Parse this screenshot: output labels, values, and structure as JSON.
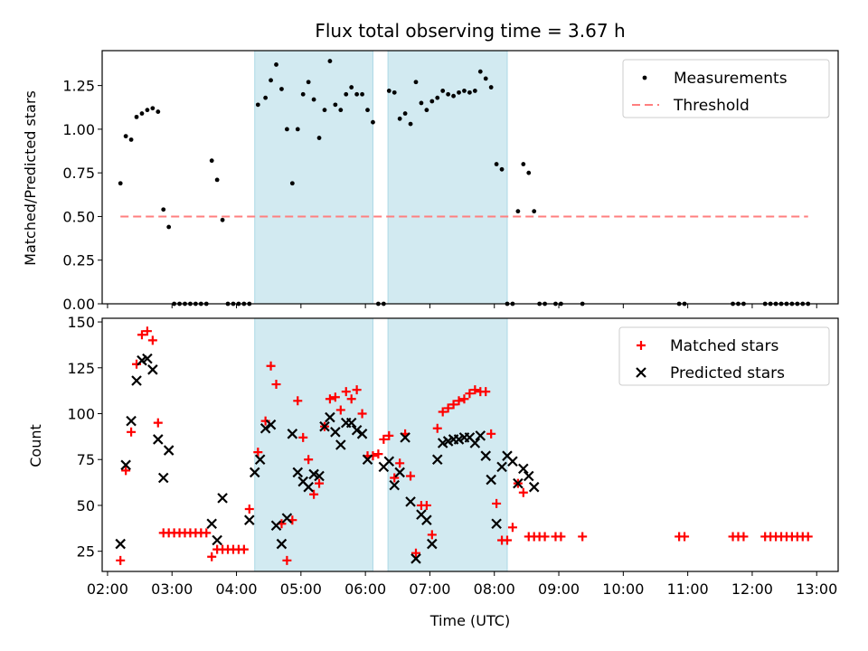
{
  "chart_data": [
    {
      "type": "scatter",
      "panel": "top",
      "title": "Flux total observing time = 3.67 h",
      "xlabel": "",
      "ylabel": "Matched/Predicted stars",
      "xlim": [
        "01:55",
        "13:20"
      ],
      "ylim": [
        0.0,
        1.45
      ],
      "yticks": [
        0.0,
        0.25,
        0.5,
        0.75,
        1.0,
        1.25
      ],
      "ytick_labels": [
        "0.00",
        "0.25",
        "0.50",
        "0.75",
        "1.00",
        "1.25"
      ],
      "xtick_times": [
        "02:00",
        "03:00",
        "04:00",
        "05:00",
        "06:00",
        "07:00",
        "08:00",
        "09:00",
        "10:00",
        "11:00",
        "12:00",
        "13:00"
      ],
      "shaded_intervals": [
        [
          "04:17",
          "06:07"
        ],
        [
          "06:21",
          "08:12"
        ]
      ],
      "shade_color": "#add8e6",
      "legend": {
        "placement": "top-right",
        "entries": [
          "Measurements",
          "Threshold"
        ]
      },
      "series": [
        {
          "name": "Measurements",
          "marker": "dot",
          "color": "#000000",
          "x": [
            "02:12",
            "02:17",
            "02:22",
            "02:27",
            "02:32",
            "02:37",
            "02:42",
            "02:47",
            "02:52",
            "02:57",
            "03:02",
            "03:07",
            "03:12",
            "03:17",
            "03:22",
            "03:27",
            "03:32",
            "03:37",
            "03:42",
            "03:47",
            "03:52",
            "03:57",
            "04:02",
            "04:07",
            "04:12",
            "04:20",
            "04:27",
            "04:32",
            "04:37",
            "04:42",
            "04:47",
            "04:52",
            "04:57",
            "05:02",
            "05:07",
            "05:12",
            "05:17",
            "05:22",
            "05:27",
            "05:32",
            "05:37",
            "05:42",
            "05:47",
            "05:52",
            "05:57",
            "06:02",
            "06:07",
            "06:12",
            "06:17",
            "06:22",
            "06:27",
            "06:32",
            "06:37",
            "06:42",
            "06:47",
            "06:52",
            "06:57",
            "07:02",
            "07:07",
            "07:12",
            "07:17",
            "07:22",
            "07:27",
            "07:32",
            "07:37",
            "07:42",
            "07:47",
            "07:52",
            "07:57",
            "08:02",
            "08:07",
            "08:12",
            "08:17",
            "08:22",
            "08:27",
            "08:32",
            "08:37",
            "08:42",
            "08:47",
            "08:57",
            "09:02",
            "09:22",
            "10:52",
            "10:57",
            "11:42",
            "11:47",
            "11:52",
            "12:12",
            "12:17",
            "12:22",
            "12:27",
            "12:32",
            "12:37",
            "12:42",
            "12:47",
            "12:52"
          ],
          "values": [
            0.69,
            0.96,
            0.94,
            1.07,
            1.09,
            1.11,
            1.12,
            1.1,
            0.54,
            0.44,
            0.0,
            0.0,
            0.0,
            0.0,
            0.0,
            0.0,
            0.0,
            0.82,
            0.71,
            0.48,
            0.0,
            0.0,
            0.0,
            0.0,
            0.0,
            1.14,
            1.18,
            1.28,
            1.37,
            1.23,
            1.0,
            0.69,
            1.0,
            1.2,
            1.27,
            1.17,
            0.95,
            1.11,
            1.39,
            1.14,
            1.11,
            1.2,
            1.24,
            1.2,
            1.2,
            1.11,
            1.04,
            0.0,
            0.0,
            1.22,
            1.21,
            1.06,
            1.09,
            1.03,
            1.27,
            1.15,
            1.11,
            1.16,
            1.18,
            1.22,
            1.2,
            1.19,
            1.21,
            1.22,
            1.21,
            1.22,
            1.33,
            1.29,
            1.24,
            0.8,
            0.77,
            0.0,
            0.0,
            0.53,
            0.8,
            0.75,
            0.53,
            0.0,
            0.0,
            0.0,
            0.0,
            0.0,
            0.0,
            0.0,
            0.0,
            0.0,
            0.0,
            0.0,
            0.0,
            0.0,
            0.0,
            0.0,
            0.0,
            0.0,
            0.0,
            0.0
          ]
        },
        {
          "name": "Threshold",
          "style": "dashed",
          "color": "#ff7f7f",
          "x": [
            "02:12",
            "12:52"
          ],
          "values": [
            0.5,
            0.5
          ]
        }
      ]
    },
    {
      "type": "scatter",
      "panel": "bottom",
      "title": "",
      "xlabel": "Time (UTC)",
      "ylabel": "Count",
      "xlim": [
        "01:55",
        "13:20"
      ],
      "ylim": [
        14,
        152
      ],
      "yticks": [
        25,
        50,
        75,
        100,
        125,
        150
      ],
      "ytick_labels": [
        "25",
        "50",
        "75",
        "100",
        "125",
        "150"
      ],
      "xtick_times": [
        "02:00",
        "03:00",
        "04:00",
        "05:00",
        "06:00",
        "07:00",
        "08:00",
        "09:00",
        "10:00",
        "11:00",
        "12:00",
        "13:00"
      ],
      "xtick_labels": [
        "02:00",
        "03:00",
        "04:00",
        "05:00",
        "06:00",
        "07:00",
        "08:00",
        "09:00",
        "10:00",
        "11:00",
        "12:00",
        "13:00"
      ],
      "shaded_intervals": [
        [
          "04:17",
          "06:07"
        ],
        [
          "06:21",
          "08:12"
        ]
      ],
      "shade_color": "#add8e6",
      "legend": {
        "placement": "top-right",
        "entries": [
          "Matched stars",
          "Predicted stars"
        ]
      },
      "series": [
        {
          "name": "Matched stars",
          "marker": "plus",
          "color": "#ff0000",
          "x": [
            "02:12",
            "02:17",
            "02:22",
            "02:27",
            "02:32",
            "02:37",
            "02:42",
            "02:47",
            "02:52",
            "02:57",
            "03:02",
            "03:07",
            "03:12",
            "03:17",
            "03:22",
            "03:27",
            "03:32",
            "03:37",
            "03:42",
            "03:47",
            "03:52",
            "03:57",
            "04:02",
            "04:07",
            "04:12",
            "04:20",
            "04:27",
            "04:32",
            "04:37",
            "04:42",
            "04:47",
            "04:52",
            "04:57",
            "05:02",
            "05:07",
            "05:12",
            "05:17",
            "05:22",
            "05:27",
            "05:32",
            "05:37",
            "05:42",
            "05:47",
            "05:52",
            "05:57",
            "06:02",
            "06:07",
            "06:12",
            "06:17",
            "06:22",
            "06:27",
            "06:32",
            "06:37",
            "06:42",
            "06:47",
            "06:52",
            "06:57",
            "07:02",
            "07:07",
            "07:12",
            "07:17",
            "07:22",
            "07:27",
            "07:32",
            "07:37",
            "07:42",
            "07:47",
            "07:52",
            "07:57",
            "08:02",
            "08:07",
            "08:12",
            "08:17",
            "08:22",
            "08:27",
            "08:32",
            "08:37",
            "08:42",
            "08:47",
            "08:57",
            "09:02",
            "09:22",
            "10:52",
            "10:57",
            "11:42",
            "11:47",
            "11:52",
            "12:12",
            "12:17",
            "12:22",
            "12:27",
            "12:32",
            "12:37",
            "12:42",
            "12:47",
            "12:52"
          ],
          "values": [
            20,
            69,
            90,
            127,
            143,
            145,
            140,
            95,
            35,
            35,
            35,
            35,
            35,
            35,
            35,
            35,
            35,
            22,
            26,
            26,
            26,
            26,
            26,
            26,
            48,
            79,
            96,
            126,
            116,
            40,
            20,
            42,
            107,
            87,
            75,
            56,
            62,
            93,
            108,
            109,
            102,
            112,
            108,
            113,
            100,
            77,
            77,
            78,
            86,
            88,
            65,
            73,
            89,
            66,
            24,
            50,
            50,
            34,
            92,
            101,
            103,
            105,
            107,
            108,
            111,
            113,
            112,
            112,
            89,
            51,
            31,
            31,
            38,
            62,
            57,
            33,
            33,
            33,
            33,
            33,
            33,
            33,
            33,
            33,
            33,
            33,
            33,
            33,
            33,
            33,
            33,
            33,
            33,
            33,
            33,
            33
          ]
        },
        {
          "name": "Predicted stars",
          "marker": "x",
          "color": "#000000",
          "x": [
            "02:12",
            "02:17",
            "02:22",
            "02:27",
            "02:32",
            "02:37",
            "02:42",
            "02:47",
            "02:52",
            "02:57",
            "03:37",
            "03:42",
            "03:47",
            "04:12",
            "04:17",
            "04:22",
            "04:27",
            "04:32",
            "04:37",
            "04:42",
            "04:47",
            "04:52",
            "04:57",
            "05:02",
            "05:07",
            "05:12",
            "05:17",
            "05:22",
            "05:27",
            "05:32",
            "05:37",
            "05:42",
            "05:47",
            "05:52",
            "05:57",
            "06:02",
            "06:17",
            "06:22",
            "06:27",
            "06:32",
            "06:37",
            "06:42",
            "06:47",
            "06:52",
            "06:57",
            "07:02",
            "07:07",
            "07:12",
            "07:17",
            "07:22",
            "07:27",
            "07:32",
            "07:37",
            "07:42",
            "07:47",
            "07:52",
            "07:57",
            "08:02",
            "08:07",
            "08:12",
            "08:17",
            "08:22",
            "08:27",
            "08:32",
            "08:37"
          ],
          "values": [
            29,
            72,
            96,
            118,
            129,
            130,
            124,
            86,
            65,
            80,
            40,
            31,
            54,
            42,
            68,
            75,
            92,
            94,
            39,
            29,
            43,
            89,
            68,
            63,
            60,
            67,
            66,
            93,
            98,
            90,
            83,
            95,
            95,
            91,
            89,
            75,
            71,
            74,
            61,
            68,
            87,
            52,
            21,
            45,
            42,
            29,
            75,
            84,
            85,
            86,
            86,
            87,
            87,
            84,
            88,
            77,
            64,
            40,
            71,
            77,
            74,
            62,
            70,
            66,
            60
          ]
        }
      ]
    }
  ]
}
